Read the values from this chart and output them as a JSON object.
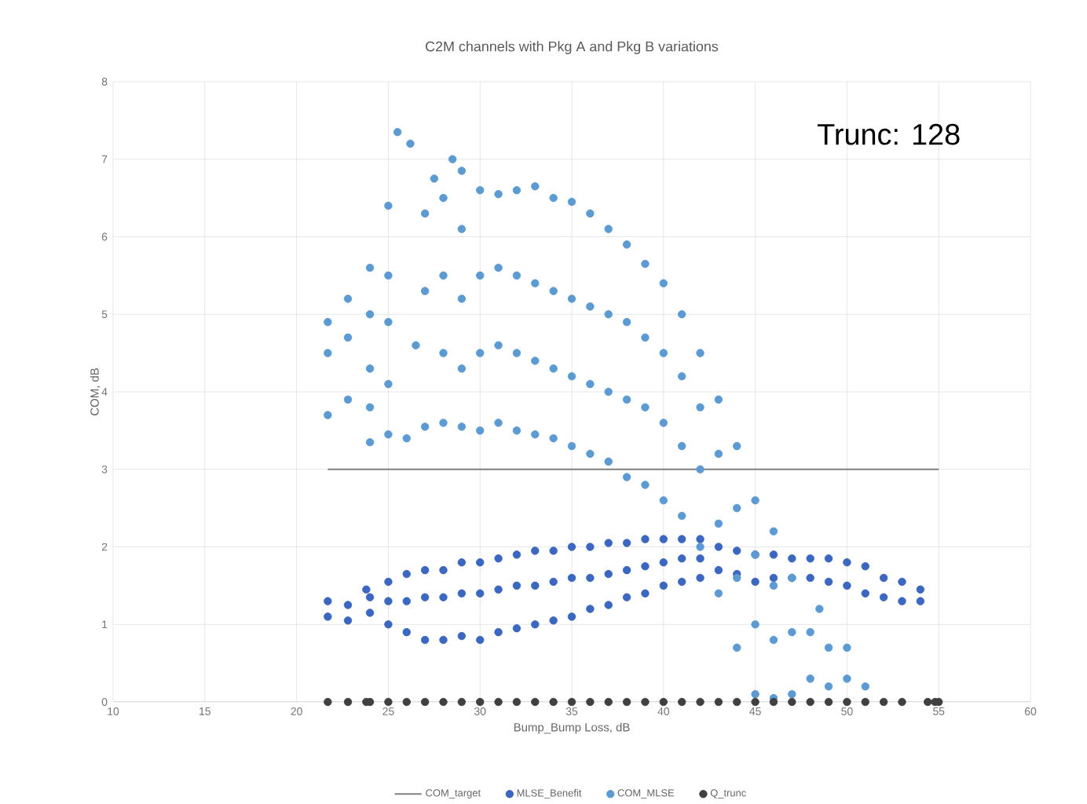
{
  "chart_data": {
    "type": "scatter",
    "title": "C2M channels with Pkg A and Pkg B variations",
    "xlabel": "Bump_Bump Loss, dB",
    "ylabel": "COM, dB",
    "annotations": [
      "Trunc: 128"
    ],
    "xlim": [
      10,
      60
    ],
    "xticks": [
      10,
      15,
      20,
      25,
      30,
      35,
      40,
      45,
      50,
      55,
      60
    ],
    "ylim": [
      0,
      8
    ],
    "yticks": [
      0,
      1,
      2,
      3,
      4,
      5,
      6,
      7,
      8
    ],
    "grid": true,
    "legend": "bottom",
    "marker": "circle",
    "series": [
      {
        "name": "COM_target",
        "type": "line",
        "marker": "none",
        "color": "#7f7f7f",
        "x": [
          21.7,
          55
        ],
        "values": [
          3,
          3
        ]
      },
      {
        "name": "MLSE_Benefit",
        "color": "#3a66c4",
        "x": [
          21.7,
          21.7,
          22.8,
          22.8,
          23.8,
          24,
          24,
          25,
          25,
          25,
          26,
          26,
          26,
          27,
          27,
          27,
          28,
          28,
          28,
          29,
          29,
          29,
          30,
          30,
          30,
          31,
          31,
          31,
          32,
          32,
          32,
          33,
          33,
          33,
          34,
          34,
          34,
          35,
          35,
          35,
          36,
          36,
          36,
          37,
          37,
          37,
          38,
          38,
          38,
          39,
          39,
          39,
          40,
          40,
          40,
          41,
          41,
          41,
          42,
          42,
          42,
          43,
          43,
          44,
          44,
          45,
          45,
          46,
          46,
          47,
          47,
          48,
          48,
          49,
          49,
          50,
          50,
          51,
          51,
          52,
          52,
          53,
          53,
          54,
          54
        ],
        "values": [
          1.1,
          1.3,
          1.05,
          1.25,
          1.45,
          1.15,
          1.35,
          1.0,
          1.3,
          1.55,
          0.9,
          1.3,
          1.65,
          0.8,
          1.35,
          1.7,
          0.8,
          1.35,
          1.7,
          0.85,
          1.4,
          1.8,
          0.8,
          1.4,
          1.8,
          0.9,
          1.45,
          1.85,
          0.95,
          1.5,
          1.9,
          1.0,
          1.5,
          1.95,
          1.05,
          1.55,
          1.95,
          1.1,
          1.6,
          2.0,
          1.2,
          1.6,
          2.0,
          1.25,
          1.65,
          2.05,
          1.35,
          1.7,
          2.05,
          1.4,
          1.75,
          2.1,
          1.5,
          1.8,
          2.1,
          1.55,
          1.85,
          2.1,
          1.6,
          1.85,
          2.1,
          1.7,
          2.0,
          1.65,
          1.95,
          1.55,
          1.9,
          1.6,
          1.9,
          1.6,
          1.85,
          1.6,
          1.85,
          1.55,
          1.85,
          1.5,
          1.8,
          1.4,
          1.75,
          1.35,
          1.6,
          1.3,
          1.55,
          1.3,
          1.45
        ]
      },
      {
        "name": "COM_MLSE",
        "color": "#5b9bd5",
        "x": [
          21.7,
          21.7,
          21.7,
          22.8,
          22.8,
          22.8,
          24,
          24,
          24,
          24,
          24,
          25,
          25,
          25,
          25,
          25,
          25.5,
          26.2,
          26,
          26.5,
          27,
          27,
          27,
          27.5,
          28,
          28,
          28,
          28,
          28.5,
          29,
          29,
          29,
          29,
          29,
          30,
          30,
          30,
          30,
          31,
          31,
          31,
          31,
          32,
          32,
          32,
          32,
          33,
          33,
          33,
          33,
          34,
          34,
          34,
          34,
          35,
          35,
          35,
          35,
          36,
          36,
          36,
          36,
          37,
          37,
          37,
          37,
          38,
          38,
          38,
          38,
          39,
          39,
          39,
          39,
          40,
          40,
          40,
          40,
          41,
          41,
          41,
          41,
          42,
          42,
          42,
          42,
          43,
          43,
          43,
          43,
          44,
          44,
          44,
          44,
          45,
          45,
          45,
          45,
          46,
          46,
          46,
          46,
          47,
          47,
          47,
          48,
          48,
          48.5,
          49,
          49,
          50,
          50,
          51
        ],
        "values": [
          3.7,
          4.5,
          4.9,
          3.9,
          4.7,
          5.2,
          3.35,
          3.8,
          4.3,
          5.0,
          5.6,
          3.45,
          4.1,
          4.9,
          5.5,
          6.4,
          7.35,
          7.2,
          3.4,
          4.6,
          3.55,
          5.3,
          6.3,
          6.75,
          3.6,
          4.5,
          5.5,
          6.5,
          7.0,
          3.55,
          4.3,
          5.2,
          6.1,
          6.85,
          3.5,
          4.5,
          5.5,
          6.6,
          3.6,
          4.6,
          5.6,
          6.55,
          3.5,
          4.5,
          5.5,
          6.6,
          3.45,
          4.4,
          5.4,
          6.65,
          3.4,
          4.3,
          5.3,
          6.5,
          3.3,
          4.2,
          5.2,
          6.45,
          3.2,
          4.1,
          5.1,
          6.3,
          3.1,
          4.0,
          5.0,
          6.1,
          2.9,
          3.9,
          4.9,
          5.9,
          2.8,
          3.8,
          4.7,
          5.65,
          2.6,
          3.6,
          4.5,
          5.4,
          2.4,
          3.3,
          4.2,
          5.0,
          2.0,
          3.0,
          3.8,
          4.5,
          1.4,
          2.3,
          3.2,
          3.9,
          0.7,
          1.6,
          2.5,
          3.3,
          0.1,
          1.0,
          1.9,
          2.6,
          0.05,
          0.8,
          1.5,
          2.2,
          0.1,
          0.9,
          1.6,
          0.3,
          0.9,
          1.2,
          0.2,
          0.7,
          0.3,
          0.7,
          0.2
        ]
      },
      {
        "name": "Q_trunc",
        "color": "#404040",
        "x": [
          21.7,
          22.8,
          23.8,
          24,
          25,
          26,
          27,
          28,
          29,
          30,
          31,
          32,
          33,
          34,
          35,
          36,
          37,
          38,
          39,
          40,
          41,
          42,
          43,
          44,
          45,
          46,
          47,
          48,
          49,
          50,
          51,
          52,
          53,
          54.4,
          54.8,
          55
        ],
        "values": [
          0,
          0,
          0,
          0,
          0,
          0,
          0,
          0,
          0,
          0,
          0,
          0,
          0,
          0,
          0,
          0,
          0,
          0,
          0,
          0,
          0,
          0,
          0,
          0,
          0,
          0,
          0,
          0,
          0,
          0,
          0,
          0,
          0,
          0,
          0,
          0
        ]
      }
    ]
  }
}
